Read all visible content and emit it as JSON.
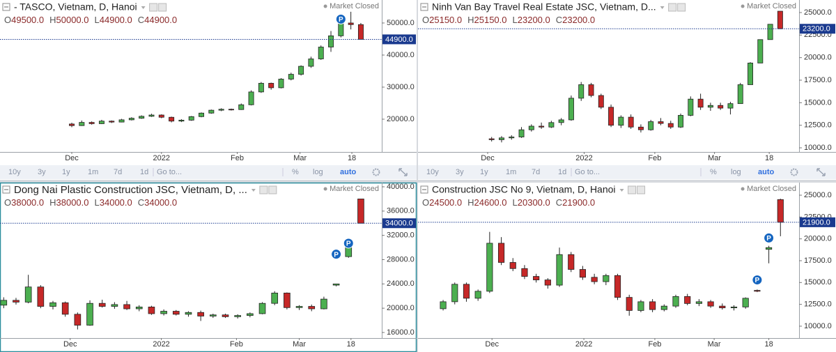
{
  "chart_data": [
    {
      "type": "candlestick",
      "title": "- TASCO, Vietnam, D, Hanoi",
      "status": "Market Closed",
      "legend_keys": [
        "O",
        "H",
        "L",
        "C"
      ],
      "legend_labels": [
        "49500.0",
        "50000.0",
        "44900.0",
        "44900.0"
      ],
      "up_color": "#4caf50",
      "down_color": "#c62828",
      "last_color": "#1a3a8f",
      "event_color": "#1565c0",
      "xlim": [
        -7.2,
        31.1
      ],
      "ylim": [
        9780,
        57170
      ],
      "xticks": [
        {
          "value": 0,
          "label": "Dec"
        },
        {
          "value": 9,
          "label": "2022"
        },
        {
          "value": 16.6,
          "label": "Feb"
        },
        {
          "value": 22.9,
          "label": "Mar"
        },
        {
          "value": 28.1,
          "label": "18"
        }
      ],
      "yticks": [
        {
          "value": 20000,
          "label": "20000.0"
        },
        {
          "value": 30000,
          "label": "30000.0"
        },
        {
          "value": 40000,
          "label": "40000.0"
        },
        {
          "value": 50000,
          "label": "50000.0"
        }
      ],
      "last_label": "44900.0",
      "events": [
        {
          "x": 27,
          "y": 51200,
          "label": "P"
        }
      ],
      "ohlc": [
        [
          18500,
          18900,
          17500,
          18000
        ],
        [
          18000,
          19600,
          17900,
          19000
        ],
        [
          19000,
          19300,
          18300,
          18600
        ],
        [
          18600,
          19800,
          18500,
          19400
        ],
        [
          19400,
          19600,
          18800,
          19100
        ],
        [
          19100,
          20100,
          19000,
          19800
        ],
        [
          19800,
          20600,
          19600,
          20300
        ],
        [
          20300,
          21200,
          20100,
          20900
        ],
        [
          20900,
          21700,
          20700,
          21300
        ],
        [
          21300,
          21500,
          20300,
          20600
        ],
        [
          20600,
          20800,
          19000,
          19400
        ],
        [
          19400,
          20000,
          19100,
          19700
        ],
        [
          19700,
          21000,
          19500,
          20800
        ],
        [
          20800,
          22100,
          20600,
          21900
        ],
        [
          21900,
          23000,
          21700,
          22800
        ],
        [
          22800,
          23400,
          22500,
          23100
        ],
        [
          23100,
          23300,
          22700,
          23000
        ],
        [
          23000,
          24900,
          22900,
          24500
        ],
        [
          24500,
          29000,
          24300,
          28500
        ],
        [
          28500,
          31600,
          28200,
          31200
        ],
        [
          31200,
          31400,
          29200,
          29800
        ],
        [
          29800,
          32800,
          29600,
          32500
        ],
        [
          32500,
          34500,
          32100,
          34000
        ],
        [
          34000,
          36800,
          33600,
          36500
        ],
        [
          36500,
          39500,
          36000,
          38800
        ],
        [
          38800,
          43000,
          38500,
          42500
        ],
        [
          42500,
          47500,
          41000,
          46000
        ],
        [
          46000,
          50500,
          45500,
          50000
        ],
        [
          50000,
          53500,
          48000,
          49500
        ],
        [
          49500,
          50000,
          44900,
          44900
        ]
      ]
    },
    {
      "type": "candlestick",
      "title": "Ninh Van Bay Travel Real Estate JSC, Vietnam, D...",
      "status": "Market Closed",
      "legend_keys": [
        "O",
        "H",
        "L",
        "C"
      ],
      "legend_labels": [
        "25150.0",
        "25150.0",
        "23200.0",
        "23200.0"
      ],
      "up_color": "#4caf50",
      "down_color": "#c62828",
      "last_color": "#1a3a8f",
      "event_color": "#1565c0",
      "xlim": [
        -7.4,
        30.9
      ],
      "ylim": [
        9540,
        26390
      ],
      "xticks": [
        {
          "value": -0.4,
          "label": "Dec"
        },
        {
          "value": 9.3,
          "label": "2022"
        },
        {
          "value": 16.4,
          "label": "Feb"
        },
        {
          "value": 22.4,
          "label": "Mar"
        },
        {
          "value": 27.9,
          "label": "18"
        }
      ],
      "yticks": [
        {
          "value": 10000,
          "label": "10000.0"
        },
        {
          "value": 12500,
          "label": "12500.0"
        },
        {
          "value": 15000,
          "label": "15000.0"
        },
        {
          "value": 17500,
          "label": "17500.0"
        },
        {
          "value": 20000,
          "label": "20000.0"
        },
        {
          "value": 22500,
          "label": "22500.0"
        },
        {
          "value": 25000,
          "label": "25000.0"
        }
      ],
      "last_label": "23200.0",
      "events": [],
      "ohlc": [
        [
          11000,
          11200,
          10700,
          10900
        ],
        [
          10900,
          11300,
          10600,
          11100
        ],
        [
          11100,
          11400,
          10900,
          11200
        ],
        [
          11200,
          12300,
          11100,
          12000
        ],
        [
          12000,
          12600,
          11800,
          12400
        ],
        [
          12400,
          12800,
          12100,
          12300
        ],
        [
          12300,
          13000,
          12200,
          12800
        ],
        [
          12800,
          13300,
          12500,
          13100
        ],
        [
          13100,
          15800,
          13000,
          15500
        ],
        [
          15500,
          17300,
          15200,
          17000
        ],
        [
          17000,
          17200,
          15600,
          15800
        ],
        [
          15800,
          16000,
          14300,
          14500
        ],
        [
          14500,
          14800,
          12300,
          12500
        ],
        [
          12500,
          13600,
          12200,
          13400
        ],
        [
          13400,
          13700,
          12100,
          12300
        ],
        [
          12300,
          12600,
          11700,
          12000
        ],
        [
          12000,
          13100,
          11900,
          12900
        ],
        [
          12900,
          13300,
          12500,
          12700
        ],
        [
          12700,
          13000,
          12100,
          12300
        ],
        [
          12300,
          13800,
          12200,
          13600
        ],
        [
          13600,
          15700,
          13500,
          15400
        ],
        [
          15400,
          16000,
          14200,
          14500
        ],
        [
          14500,
          15000,
          14100,
          14700
        ],
        [
          14700,
          15000,
          14200,
          14400
        ],
        [
          14400,
          15100,
          13700,
          14900
        ],
        [
          14900,
          17200,
          14900,
          17000
        ],
        [
          17000,
          19500,
          17000,
          19400
        ],
        [
          19400,
          22000,
          19400,
          22000
        ],
        [
          22000,
          23700,
          22000,
          23700
        ],
        [
          25150,
          25150,
          23200,
          23200
        ]
      ]
    },
    {
      "type": "candlestick",
      "title": "Dong Nai Plastic Construction JSC, Vietnam, D, ...",
      "status": "Market Closed",
      "legend_keys": [
        "O",
        "H",
        "L",
        "C"
      ],
      "legend_labels": [
        "38000.0",
        "38000.0",
        "34000.0",
        "34000.0"
      ],
      "up_color": "#4caf50",
      "down_color": "#c62828",
      "last_color": "#1a3a8f",
      "event_color": "#1565c0",
      "xlim": [
        -0.3,
        30.7
      ],
      "ylim": [
        15080,
        40690
      ],
      "xticks": [
        {
          "value": 5.4,
          "label": "Dec"
        },
        {
          "value": 12.8,
          "label": "2022"
        },
        {
          "value": 18.9,
          "label": "Feb"
        },
        {
          "value": 24,
          "label": "Mar"
        },
        {
          "value": 28.2,
          "label": "18"
        }
      ],
      "yticks": [
        {
          "value": 16000,
          "label": "16000.0"
        },
        {
          "value": 20000,
          "label": "20000.0"
        },
        {
          "value": 24000,
          "label": "24000.0"
        },
        {
          "value": 28000,
          "label": "28000.0"
        },
        {
          "value": 32000,
          "label": "32000.0"
        },
        {
          "value": 36000,
          "label": "36000.0"
        },
        {
          "value": 40000,
          "label": "40000.0"
        }
      ],
      "last_label": "34000.0",
      "events": [
        {
          "x": 27,
          "y": 28900,
          "label": "P"
        },
        {
          "x": 28,
          "y": 30700,
          "label": "P"
        }
      ],
      "ohlc": [
        [
          20500,
          21800,
          20000,
          21300
        ],
        [
          21300,
          21700,
          20600,
          21000
        ],
        [
          21000,
          25500,
          20800,
          23500
        ],
        [
          23500,
          23800,
          20000,
          20300
        ],
        [
          20300,
          21200,
          19800,
          20900
        ],
        [
          20900,
          21100,
          18600,
          19000
        ],
        [
          19000,
          19300,
          16500,
          17200
        ],
        [
          17200,
          21300,
          17100,
          20800
        ],
        [
          20800,
          21400,
          20100,
          20300
        ],
        [
          20300,
          21000,
          19900,
          20600
        ],
        [
          20600,
          21200,
          19700,
          19900
        ],
        [
          19900,
          20500,
          19500,
          20200
        ],
        [
          20200,
          20400,
          18900,
          19100
        ],
        [
          19100,
          19800,
          18800,
          19500
        ],
        [
          19500,
          19700,
          18800,
          19000
        ],
        [
          19000,
          19500,
          18600,
          19300
        ],
        [
          19300,
          19600,
          17900,
          18700
        ],
        [
          18700,
          19100,
          18400,
          18900
        ],
        [
          18900,
          19100,
          18400,
          18600
        ],
        [
          18600,
          19000,
          18300,
          18800
        ],
        [
          18800,
          19300,
          18500,
          19100
        ],
        [
          19100,
          21000,
          19000,
          20800
        ],
        [
          20800,
          22800,
          20500,
          22500
        ],
        [
          22500,
          22600,
          19800,
          20100
        ],
        [
          20100,
          20500,
          19700,
          20300
        ],
        [
          20300,
          20600,
          19500,
          19900
        ],
        [
          19900,
          21900,
          19800,
          21500
        ],
        [
          23800,
          24000,
          23600,
          24000
        ],
        [
          28500,
          31200,
          28300,
          31000
        ],
        [
          38000,
          38000,
          34000,
          34000
        ]
      ]
    },
    {
      "type": "candlestick",
      "title": "Construction JSC No 9, Vietnam, D, Hanoi",
      "status": "Market Closed",
      "legend_keys": [
        "O",
        "H",
        "L",
        "C"
      ],
      "legend_labels": [
        "24500.0",
        "24600.0",
        "20300.0",
        "21900.0"
      ],
      "up_color": "#4caf50",
      "down_color": "#c62828",
      "last_color": "#1a3a8f",
      "event_color": "#1565c0",
      "xlim": [
        -2.16,
        30.6
      ],
      "ylim": [
        8640,
        26440
      ],
      "xticks": [
        {
          "value": 4.2,
          "label": "Dec"
        },
        {
          "value": 12.1,
          "label": "2022"
        },
        {
          "value": 18.2,
          "label": "Feb"
        },
        {
          "value": 23.3,
          "label": "Mar"
        },
        {
          "value": 28,
          "label": "18"
        }
      ],
      "yticks": [
        {
          "value": 10000,
          "label": "10000.0"
        },
        {
          "value": 12500,
          "label": "12500.0"
        },
        {
          "value": 15000,
          "label": "15000.0"
        },
        {
          "value": 17500,
          "label": "17500.0"
        },
        {
          "value": 20000,
          "label": "20000.0"
        },
        {
          "value": 22500,
          "label": "22500.0"
        },
        {
          "value": 25000,
          "label": "25000.0"
        }
      ],
      "last_label": "21900.0",
      "events": [
        {
          "x": 27,
          "y": 15300,
          "label": "P"
        },
        {
          "x": 28,
          "y": 20100,
          "label": "P"
        }
      ],
      "ohlc": [
        [
          12000,
          13000,
          11800,
          12800
        ],
        [
          12800,
          15000,
          12500,
          14800
        ],
        [
          14800,
          15000,
          12800,
          13200
        ],
        [
          13200,
          14200,
          12900,
          14000
        ],
        [
          14000,
          20800,
          13800,
          19500
        ],
        [
          19500,
          20200,
          17000,
          17300
        ],
        [
          17300,
          17800,
          16300,
          16600
        ],
        [
          16600,
          17000,
          15400,
          15700
        ],
        [
          15700,
          16000,
          15000,
          15300
        ],
        [
          15300,
          15500,
          14300,
          14700
        ],
        [
          14700,
          19000,
          14500,
          18200
        ],
        [
          18200,
          18500,
          16200,
          16500
        ],
        [
          16500,
          16900,
          15300,
          15600
        ],
        [
          15600,
          16000,
          14800,
          15100
        ],
        [
          15100,
          16000,
          14700,
          15800
        ],
        [
          15800,
          16000,
          13000,
          13300
        ],
        [
          13300,
          13600,
          11200,
          11800
        ],
        [
          11800,
          13000,
          11600,
          12800
        ],
        [
          12800,
          13100,
          11600,
          11900
        ],
        [
          11900,
          12500,
          11700,
          12300
        ],
        [
          12300,
          13600,
          12100,
          13400
        ],
        [
          13400,
          13700,
          12400,
          12600
        ],
        [
          12600,
          13100,
          12300,
          12800
        ],
        [
          12800,
          13000,
          12100,
          12300
        ],
        [
          12300,
          12600,
          11900,
          12100
        ],
        [
          12100,
          12400,
          11800,
          12200
        ],
        [
          12200,
          13300,
          12000,
          13200
        ],
        [
          14100,
          14200,
          13900,
          14000
        ],
        [
          18800,
          19200,
          17200,
          19000
        ],
        [
          24500,
          24600,
          20300,
          21900
        ]
      ]
    }
  ],
  "toolbar": {
    "ranges": [
      "10y",
      "3y",
      "1y",
      "1m",
      "7d",
      "1d"
    ],
    "goto": "Go to...",
    "options": [
      "%",
      "log"
    ],
    "scale": "auto"
  }
}
